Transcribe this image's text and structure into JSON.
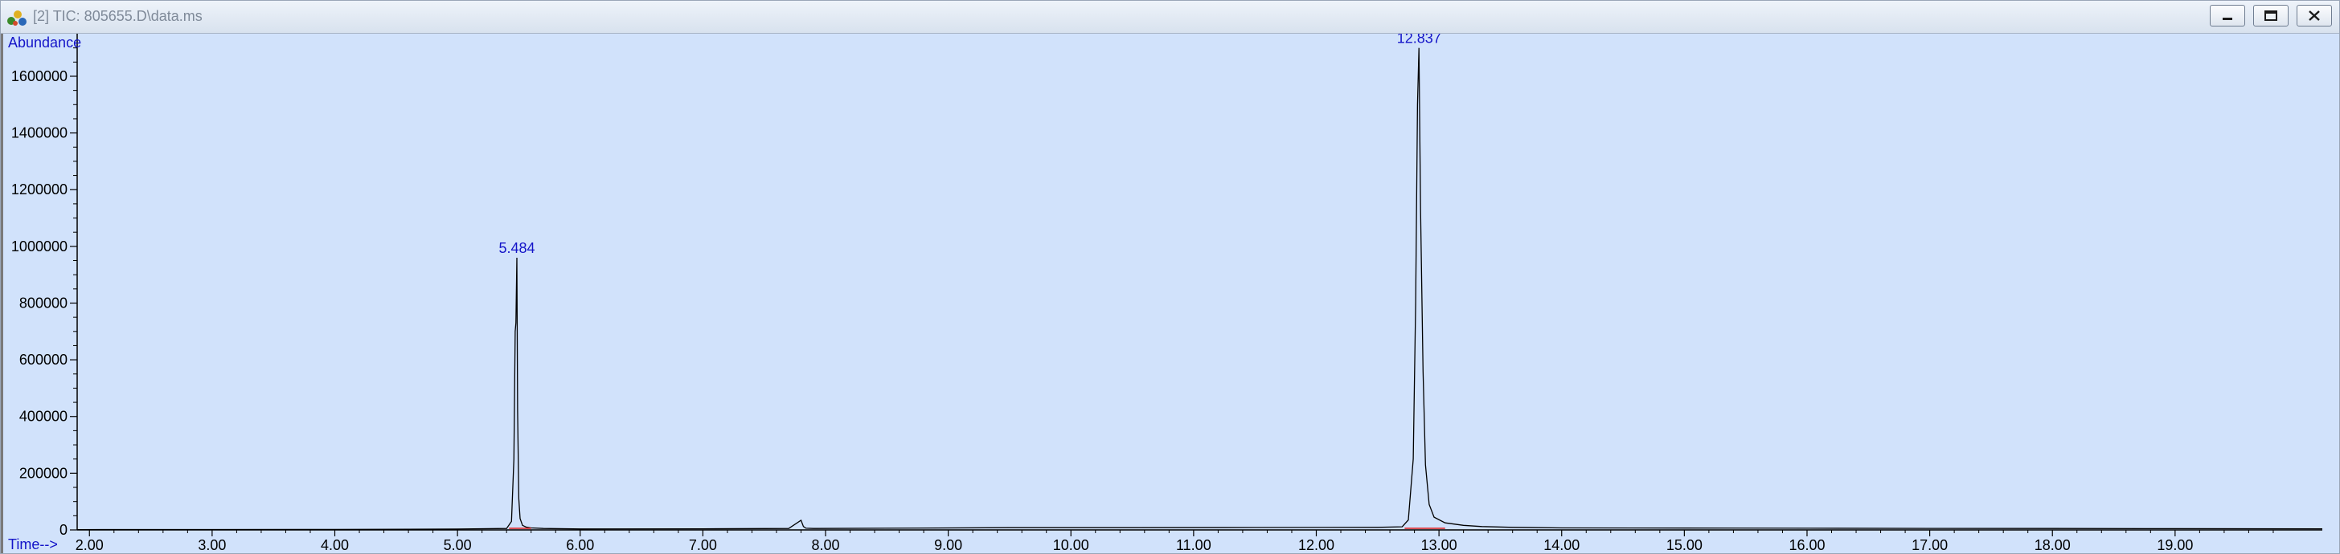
{
  "window": {
    "title": "[2] TIC: 805655.D\\data.ms",
    "app_icon": "chromatogram-app-icon",
    "controls": [
      {
        "name": "minimize-button",
        "icon": "minimize-icon"
      },
      {
        "name": "restore-button",
        "icon": "restore-icon"
      },
      {
        "name": "close-button",
        "icon": "close-icon"
      }
    ],
    "colors": {
      "plot_background": "#d1e2fb",
      "trace": "#000000",
      "baseline_marker": "#e02020",
      "axis_label": "#1414c8"
    }
  },
  "chart_data": {
    "type": "line",
    "title": "",
    "ylabel": "Abundance",
    "xlabel": "Time-->",
    "xlim": [
      1.9,
      20.2
    ],
    "ylim": [
      0,
      1750000
    ],
    "grid": false,
    "x_ticks": [
      "2.00",
      "3.00",
      "4.00",
      "5.00",
      "6.00",
      "7.00",
      "8.00",
      "9.00",
      "10.00",
      "11.00",
      "12.00",
      "13.00",
      "14.00",
      "15.00",
      "16.00",
      "17.00",
      "18.00",
      "19.00"
    ],
    "y_ticks": [
      "0",
      "200000",
      "400000",
      "600000",
      "800000",
      "1000000",
      "1200000",
      "1400000",
      "1600000"
    ],
    "peak_labels": [
      {
        "text": "5.484",
        "x": 5.484,
        "y": 960000
      },
      {
        "text": "12.837",
        "x": 12.837,
        "y": 1700000
      }
    ],
    "series": [
      {
        "x": [
          1.9,
          3.0,
          4.0,
          5.0,
          5.4,
          5.44,
          5.46,
          5.47,
          5.476,
          5.484,
          5.49,
          5.5,
          5.51,
          5.53,
          5.56,
          5.6,
          5.7,
          6.0,
          7.0,
          7.7,
          7.8,
          7.82,
          7.84,
          7.9,
          8.5,
          9.5,
          10.5,
          11.5,
          12.5,
          12.7,
          12.75,
          12.79,
          12.81,
          12.825,
          12.837,
          12.85,
          12.87,
          12.89,
          12.92,
          12.96,
          13.05,
          13.2,
          13.35,
          13.6,
          14.0,
          15.0,
          16.0,
          17.0,
          18.0,
          19.0,
          20.2
        ],
        "y": [
          1200,
          1400,
          1800,
          3000,
          5000,
          30000,
          250000,
          700000,
          730000,
          960000,
          420000,
          110000,
          40000,
          16000,
          10000,
          7000,
          5000,
          3500,
          4000,
          5000,
          34000,
          12000,
          6000,
          5000,
          6000,
          8000,
          8000,
          8500,
          9000,
          11000,
          35000,
          250000,
          800000,
          1500000,
          1700000,
          1130000,
          560000,
          230000,
          90000,
          45000,
          25000,
          16000,
          12000,
          9000,
          7000,
          6500,
          6000,
          5500,
          5000,
          4500,
          4000
        ]
      }
    ]
  }
}
